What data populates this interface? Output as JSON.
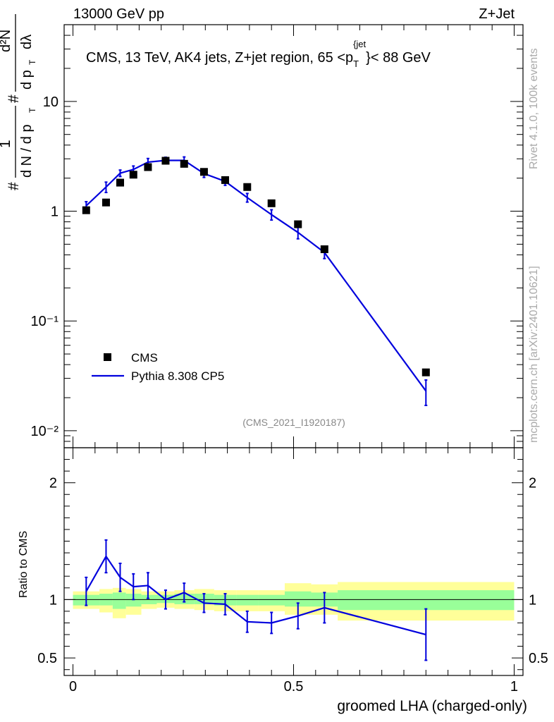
{
  "header": {
    "energy_label": "13000 GeV pp",
    "process_label": "Z+Jet"
  },
  "side_labels": {
    "rivet": "Rivet 4.1.0,  100k events",
    "mcplots": "mcplots.cern.ch [arXiv:2401.10621]"
  },
  "chart_data": [
    {
      "type": "line",
      "panel": "main",
      "title": "CMS, 13 TeV, AK4 jets, Z+jet region, 65 <p_T^{jet}< 88 GeV",
      "title_parts": {
        "main": "CMS, 13 TeV, AK4 jets, Z+jet region, 65 <p",
        "sub": "T",
        "sup": "{jet",
        "tail": "}< 88 GeV"
      },
      "ylabel": "1/(dN/dp_T) d²N/(dp_T dλ)",
      "ylabel_parts": {
        "hash1": "#",
        "one": "1",
        "dn": "d N / d p",
        "t1": "T",
        "hash2": "#",
        "d2n": "d²N",
        "dp": "d p",
        "t2": "T",
        "dl": "dλ"
      },
      "yscale": "log",
      "ylim": [
        0.007,
        50
      ],
      "xlim": [
        -0.02,
        1.02
      ],
      "yticks": [
        {
          "v": 10,
          "label": "10"
        },
        {
          "v": 1,
          "label": "1"
        },
        {
          "v": 0.1,
          "label": "10⁻¹"
        },
        {
          "v": 0.01,
          "label": "10⁻²"
        }
      ],
      "analysis_tag": "(CMS_2021_I1920187)",
      "legend_position": "lower-left",
      "series": [
        {
          "name": "CMS",
          "kind": "markers",
          "color": "#000000",
          "x": [
            0.03,
            0.075,
            0.107,
            0.137,
            0.17,
            0.21,
            0.252,
            0.297,
            0.345,
            0.395,
            0.45,
            0.51,
            0.57,
            0.8
          ],
          "y": [
            1.02,
            1.2,
            1.82,
            2.15,
            2.52,
            2.88,
            2.7,
            2.28,
            1.92,
            1.66,
            1.18,
            0.76,
            0.45,
            0.034
          ]
        },
        {
          "name": "Pythia 8.308 CP5",
          "kind": "line",
          "color": "#0000dd",
          "x": [
            0.03,
            0.075,
            0.107,
            0.137,
            0.17,
            0.21,
            0.252,
            0.297,
            0.345,
            0.395,
            0.45,
            0.51,
            0.57,
            0.8
          ],
          "y": [
            1.12,
            1.66,
            2.22,
            2.4,
            2.8,
            2.9,
            2.9,
            2.2,
            1.87,
            1.33,
            0.93,
            0.64,
            0.42,
            0.023
          ],
          "yerr_lo": [
            0.1,
            0.18,
            0.15,
            0.18,
            0.22,
            0.2,
            0.22,
            0.17,
            0.15,
            0.12,
            0.1,
            0.08,
            0.05,
            0.006
          ],
          "yerr_hi": [
            0.1,
            0.18,
            0.15,
            0.18,
            0.22,
            0.2,
            0.22,
            0.17,
            0.15,
            0.12,
            0.1,
            0.08,
            0.05,
            0.006
          ]
        }
      ]
    },
    {
      "type": "line",
      "panel": "ratio",
      "ylabel": "Ratio to CMS",
      "xlabel": "groomed LHA (charged-only)",
      "ylim": [
        0.35,
        2.3
      ],
      "xlim": [
        -0.02,
        1.02
      ],
      "yticks": [
        {
          "v": 2,
          "label": "2"
        },
        {
          "v": 1,
          "label": "1"
        },
        {
          "v": 0.5,
          "label": "0.5"
        }
      ],
      "xticks": [
        {
          "v": 0,
          "label": "0"
        },
        {
          "v": 0.5,
          "label": "0.5"
        },
        {
          "v": 1,
          "label": "1"
        }
      ],
      "reference_line": 1,
      "bands": {
        "inner_color": "#99ff99",
        "outer_color": "#ffff99",
        "bins": [
          {
            "x0": 0.0,
            "x1": 0.06,
            "inner": [
              0.95,
              1.04
            ],
            "outer": [
              0.92,
              1.07
            ]
          },
          {
            "x0": 0.06,
            "x1": 0.09,
            "inner": [
              0.95,
              1.05
            ],
            "outer": [
              0.89,
              1.09
            ]
          },
          {
            "x0": 0.09,
            "x1": 0.12,
            "inner": [
              0.92,
              1.06
            ],
            "outer": [
              0.84,
              1.1
            ]
          },
          {
            "x0": 0.12,
            "x1": 0.155,
            "inner": [
              0.94,
              1.05
            ],
            "outer": [
              0.87,
              1.09
            ]
          },
          {
            "x0": 0.155,
            "x1": 0.19,
            "inner": [
              0.96,
              1.04
            ],
            "outer": [
              0.92,
              1.07
            ]
          },
          {
            "x0": 0.19,
            "x1": 0.23,
            "inner": [
              0.97,
              1.04
            ],
            "outer": [
              0.93,
              1.07
            ]
          },
          {
            "x0": 0.23,
            "x1": 0.275,
            "inner": [
              0.96,
              1.05
            ],
            "outer": [
              0.92,
              1.08
            ]
          },
          {
            "x0": 0.275,
            "x1": 0.32,
            "inner": [
              0.96,
              1.05
            ],
            "outer": [
              0.91,
              1.09
            ]
          },
          {
            "x0": 0.32,
            "x1": 0.37,
            "inner": [
              0.95,
              1.04
            ],
            "outer": [
              0.9,
              1.08
            ]
          },
          {
            "x0": 0.37,
            "x1": 0.42,
            "inner": [
              0.95,
              1.04
            ],
            "outer": [
              0.9,
              1.08
            ]
          },
          {
            "x0": 0.42,
            "x1": 0.48,
            "inner": [
              0.95,
              1.04
            ],
            "outer": [
              0.9,
              1.08
            ]
          },
          {
            "x0": 0.48,
            "x1": 0.54,
            "inner": [
              0.94,
              1.07
            ],
            "outer": [
              0.87,
              1.14
            ]
          },
          {
            "x0": 0.54,
            "x1": 0.6,
            "inner": [
              0.94,
              1.06
            ],
            "outer": [
              0.87,
              1.13
            ]
          },
          {
            "x0": 0.6,
            "x1": 1.0,
            "inner": [
              0.91,
              1.08
            ],
            "outer": [
              0.82,
              1.15
            ]
          }
        ]
      },
      "series": [
        {
          "name": "Pythia 8.308 CP5",
          "color": "#0000dd",
          "x": [
            0.03,
            0.075,
            0.107,
            0.137,
            0.17,
            0.21,
            0.252,
            0.297,
            0.345,
            0.395,
            0.45,
            0.51,
            0.57,
            0.8
          ],
          "y": [
            1.07,
            1.37,
            1.19,
            1.11,
            1.12,
            1.0,
            1.06,
            0.97,
            0.96,
            0.81,
            0.8,
            0.86,
            0.93,
            0.7
          ],
          "yerr_lo": [
            0.12,
            0.14,
            0.12,
            0.11,
            0.11,
            0.08,
            0.08,
            0.08,
            0.09,
            0.09,
            0.09,
            0.11,
            0.13,
            0.22
          ],
          "yerr_hi": [
            0.12,
            0.14,
            0.12,
            0.11,
            0.11,
            0.08,
            0.08,
            0.08,
            0.09,
            0.09,
            0.09,
            0.11,
            0.13,
            0.22
          ]
        }
      ]
    }
  ]
}
